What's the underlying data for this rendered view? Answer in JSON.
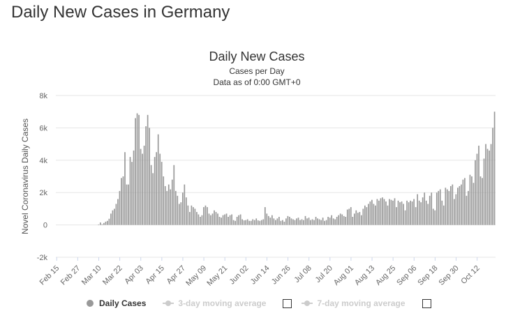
{
  "page": {
    "title": "Daily New Cases in Germany"
  },
  "chart_data": {
    "type": "bar",
    "title": "Daily New Cases",
    "subtitle": "Cases per Day",
    "subtitle2": "Data as of 0:00 GMT+0",
    "ylabel": "Novel Coronavirus Daily Cases",
    "ylim": [
      -2000,
      8000
    ],
    "yticks": [
      -2000,
      0,
      2000,
      4000,
      6000,
      8000
    ],
    "ytick_labels": [
      "-2k",
      "0",
      "2k",
      "4k",
      "6k",
      "8k"
    ],
    "xtick_labels": [
      "Feb 15",
      "Feb 27",
      "Mar 10",
      "Mar 22",
      "Apr 03",
      "Apr 15",
      "Apr 27",
      "May 09",
      "May 21",
      "Jun 02",
      "Jun 14",
      "Jun 26",
      "Jul 08",
      "Jul 20",
      "Aug 01",
      "Aug 13",
      "Aug 25",
      "Sep 06",
      "Sep 18",
      "Sep 30",
      "Oct 12"
    ],
    "start_date": "Feb 15",
    "end_date": "Oct 14",
    "bar_color": "#999999",
    "values": [
      0,
      0,
      0,
      0,
      0,
      0,
      0,
      0,
      0,
      0,
      0,
      0,
      0,
      0,
      0,
      0,
      0,
      0,
      0,
      0,
      0,
      0,
      0,
      0,
      30,
      150,
      40,
      120,
      200,
      250,
      380,
      700,
      900,
      1000,
      1300,
      1600,
      2100,
      2900,
      3000,
      4500,
      2500,
      2500,
      4200,
      3900,
      4600,
      6600,
      6900,
      6800,
      4700,
      4400,
      4900,
      6100,
      6800,
      6000,
      3700,
      3200,
      4200,
      4500,
      5600,
      4400,
      3900,
      3000,
      2400,
      2100,
      2500,
      2200,
      2800,
      3700,
      2100,
      1800,
      1300,
      1400,
      2000,
      2500,
      1700,
      1200,
      800,
      1200,
      1100,
      1000,
      800,
      650,
      500,
      600,
      1100,
      1200,
      1100,
      700,
      600,
      700,
      900,
      800,
      700,
      500,
      450,
      600,
      650,
      700,
      500,
      600,
      650,
      300,
      250,
      500,
      600,
      650,
      350,
      280,
      300,
      350,
      250,
      250,
      350,
      300,
      400,
      280,
      250,
      300,
      350,
      1100,
      700,
      550,
      450,
      600,
      400,
      300,
      400,
      500,
      250,
      300,
      200,
      400,
      550,
      500,
      400,
      350,
      300,
      400,
      450,
      300,
      350,
      300,
      550,
      400,
      450,
      300,
      350,
      300,
      500,
      400,
      350,
      300,
      450,
      250,
      300,
      500,
      450,
      600,
      400,
      350,
      500,
      600,
      700,
      650,
      550,
      500,
      950,
      1000,
      1100,
      500,
      700,
      900,
      750,
      800,
      600,
      1000,
      1200,
      1100,
      1300,
      1450,
      1550,
      1300,
      1200,
      1600,
      1500,
      1650,
      1700,
      1600,
      1450,
      1200,
      1600,
      1550,
      1500,
      1650,
      1100,
      1500,
      1400,
      1450,
      1300,
      900,
      1500,
      1400,
      1500,
      1450,
      1600,
      1100,
      1900,
      1500,
      1400,
      1700,
      2000,
      1500,
      1300,
      1800,
      2000,
      1000,
      900,
      2000,
      2100,
      2200,
      1500,
      1200,
      2300,
      2200,
      2100,
      2400,
      2500,
      1600,
      1900,
      2300,
      2400,
      2500,
      2800,
      2900,
      1800,
      2100,
      3100,
      3000,
      2600,
      4000,
      4400,
      4900,
      3000,
      2900,
      4100,
      5000,
      4700,
      4600,
      5000,
      6000,
      7000
    ]
  },
  "legend": {
    "daily": "Daily Cases",
    "ma3": "3-day moving average",
    "ma7": "7-day moving average"
  }
}
